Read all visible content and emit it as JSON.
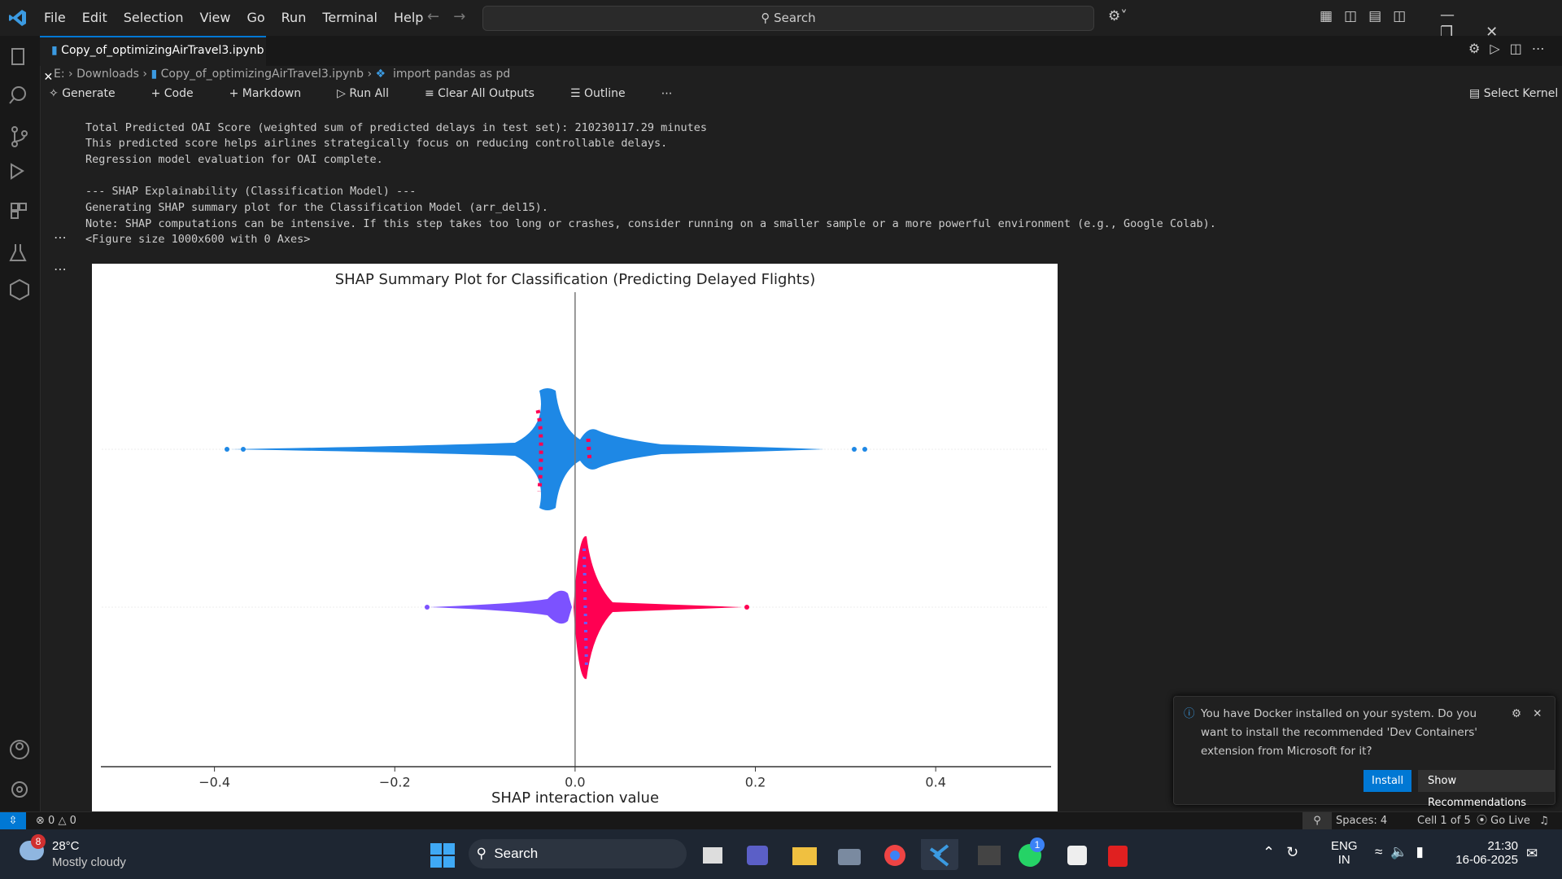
{
  "menu": [
    "File",
    "Edit",
    "Selection",
    "View",
    "Go",
    "Run",
    "Terminal",
    "Help"
  ],
  "search": "Search",
  "tab": "Copy_of_optimizingAirTravel3.ipynb",
  "breadcrumb": [
    "E:",
    "Downloads",
    "Copy_of_optimizingAirTravel3.ipynb",
    "import pandas as pd"
  ],
  "toolbar": [
    "Generate",
    "Code",
    "Markdown",
    "Run All",
    "Clear All Outputs",
    "Outline"
  ],
  "kernel": "Select Kernel",
  "output": [
    "Total Predicted OAI Score (weighted sum of predicted delays in test set): 210230117.29 minutes",
    "This predicted score helps airlines strategically focus on reducing controllable delays.",
    "Regression model evaluation for OAI complete.",
    "--- SHAP Explainability (Classification Model) ---",
    "Generating SHAP summary plot for the Classification Model (arr_del15).",
    "Note: SHAP computations can be intensive. If this step takes too long or crashes, consider running on a smaller sample or a more powerful environment (e.g., Google Colab)."
  ],
  "figure_note": "<Figure size 1000x600 with 0 Axes>",
  "chart_data": {
    "type": "beeswarm",
    "title": "SHAP Summary Plot for Classification (Predicting Delayed Flights)",
    "x_label": "SHAP interaction value",
    "xlim": [
      -0.526,
      0.528
    ],
    "xticks": [
      {
        "value": -0.4,
        "label": "−0.4"
      },
      {
        "value": -0.2,
        "label": "−0.2"
      },
      {
        "value": 0,
        "label": "0.0"
      },
      0.2,
      0.4
    ]
  },
  "notification": {
    "text": "You have Docker installed on your system. Do you want to install the recommended 'Dev Containers' extension from Microsoft for it?",
    "buttons": [
      "Install",
      "Show Recommendations"
    ]
  },
  "status": {
    "errors": 0,
    "warnings": 0,
    "spaces": "Spaces: 4",
    "cell": "Cell 1 of 5",
    "golive": "Go Live"
  },
  "taskbar": {
    "weather_badge": "8",
    "temp": "28°C",
    "weather": "Mostly cloudy",
    "search": "Search",
    "whatsapp_badge": "1",
    "lang": "ENG",
    "region": "IN",
    "time": "21:30",
    "date": "16-06-2025"
  }
}
